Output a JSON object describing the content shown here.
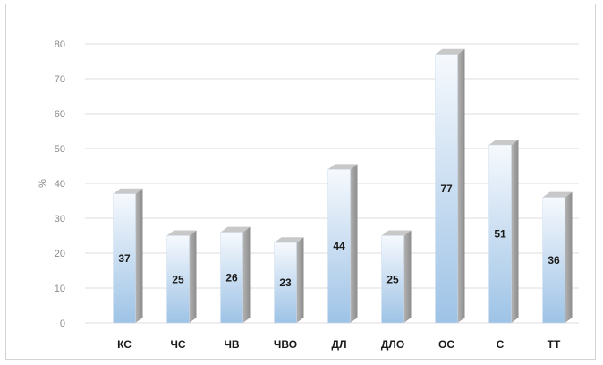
{
  "chart_data": {
    "type": "bar",
    "title": "",
    "xlabel": "",
    "ylabel": "%",
    "ylim": [
      0,
      80
    ],
    "yticks": [
      0,
      10,
      20,
      30,
      40,
      50,
      60,
      70,
      80
    ],
    "grid": true,
    "style": "3d-column",
    "categories": [
      "КС",
      "ЧС",
      "ЧВ",
      "ЧВО",
      "ДЛ",
      "ДЛО",
      "ОС",
      "С",
      "ТТ"
    ],
    "values": [
      37,
      25,
      26,
      23,
      44,
      25,
      77,
      51,
      36
    ],
    "colors": {
      "bar_top": "#f6f9fd",
      "bar_bottom": "#9ec3e6",
      "bar_side": "#a0a0a0",
      "bar_cap": "#c8c8c8",
      "grid": "#dcdcdc"
    }
  }
}
